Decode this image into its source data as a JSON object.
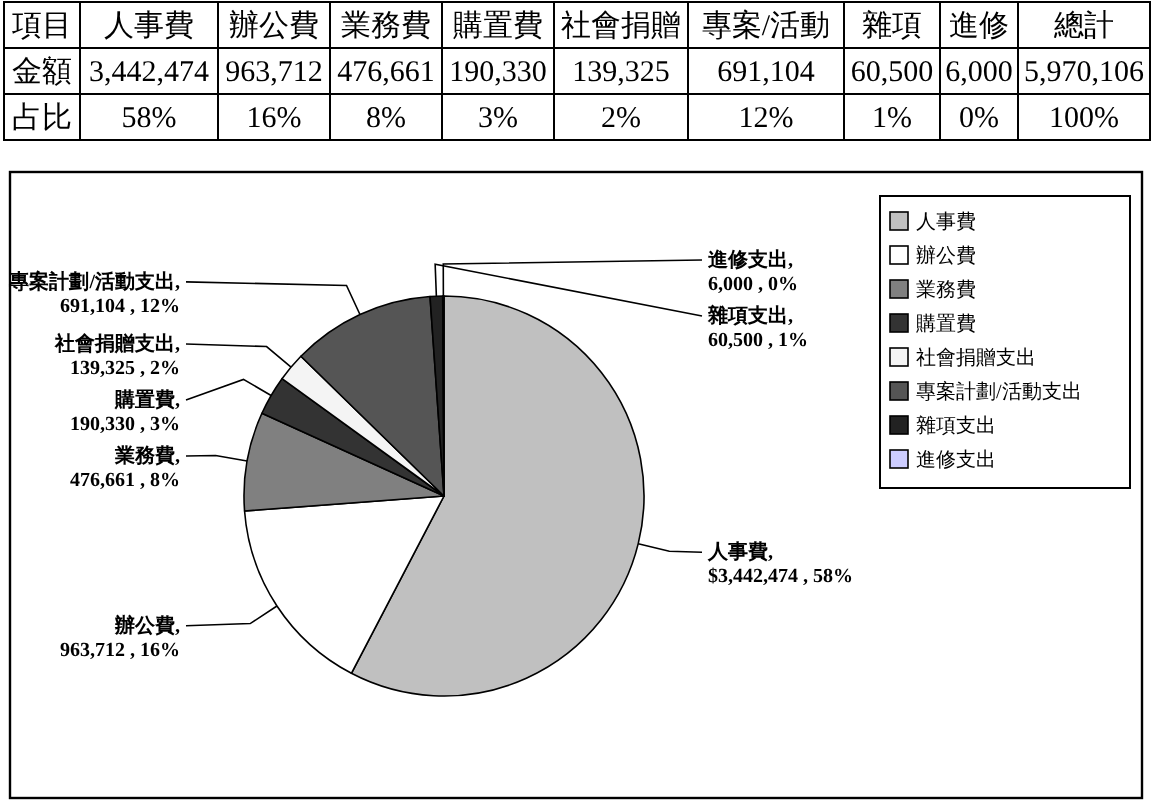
{
  "chart_data": [
    {
      "type": "other",
      "categories": [
        "人事費",
        "辦公費",
        "業務費",
        "購置費",
        "社會捐贈",
        "專案/活動",
        "雜項",
        "進修",
        "總計"
      ],
      "y_categories": [
        "金額",
        "占比"
      ],
      "cell_labels": [
        [
          "3,442,474",
          "963,712",
          "476,661",
          "190,330",
          "139,325",
          "691,104",
          "60,500",
          "6,000",
          "5,970,106"
        ],
        [
          "58%",
          "16%",
          "8%",
          "3%",
          "2%",
          "12%",
          "1%",
          "0%",
          "100%"
        ]
      ],
      "annotations": [
        "項目"
      ]
    },
    {
      "type": "pie",
      "categories": [
        "人事費",
        "辦公費",
        "業務費",
        "購置費",
        "社會捐贈支出",
        "專案計劃/活動支出",
        "雜項支出",
        "進修支出"
      ],
      "values": [
        3442474,
        963712,
        476661,
        190330,
        139325,
        691104,
        60500,
        6000
      ],
      "colors": [
        "#c0c0c0",
        "#ffffff",
        "#808080",
        "#333333",
        "#f4f4f4",
        "#555555",
        "#222222",
        "#ccccff"
      ],
      "value_labels": [
        "人事費, $3,442,474 , 58%",
        "辦公費, 963,712 , 16%",
        "業務費, 476,661 , 8%",
        "購置費, 190,330 , 3%",
        "社會捐贈支出, 139,325 , 2%",
        "專案計劃/活動支出, 691,104 , 12%",
        "雜項支出, 60,500 , 1%",
        "進修支出, 6,000 , 0%"
      ],
      "legend": "right"
    }
  ]
}
